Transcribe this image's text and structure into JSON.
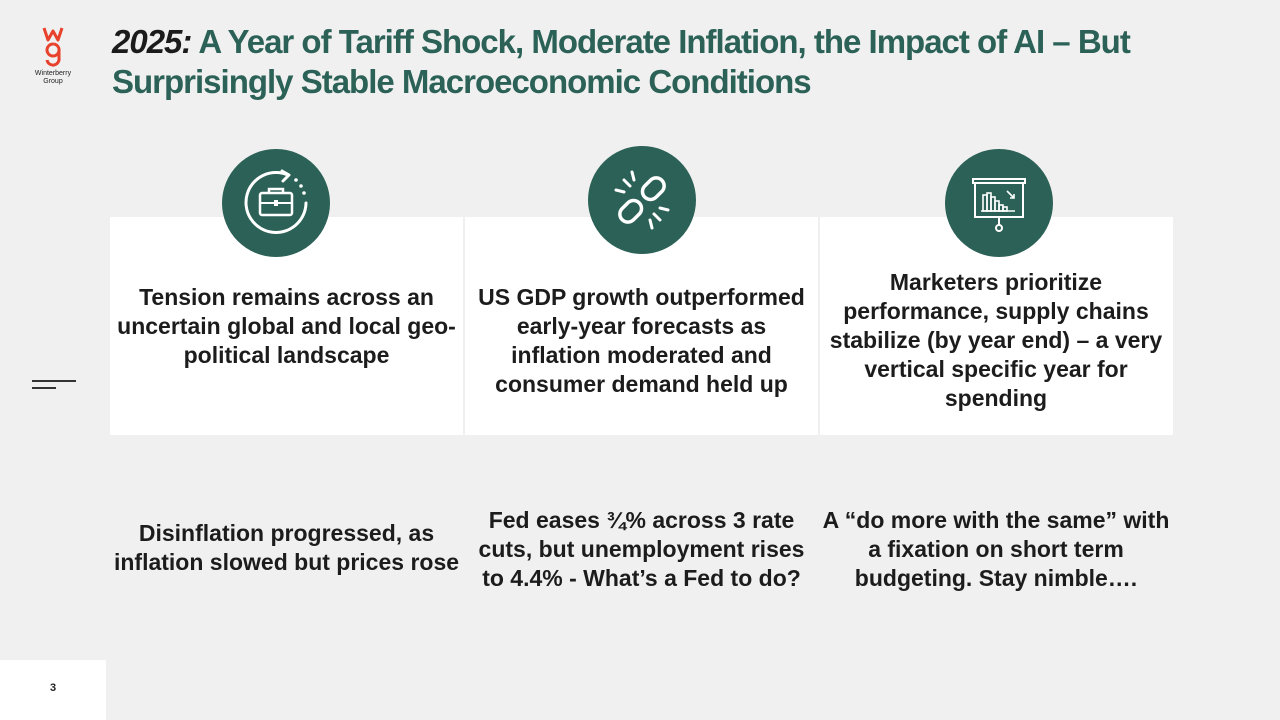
{
  "logo": {
    "text": "Winterberry Group",
    "accent": "#e8412c"
  },
  "title": {
    "year": "2025:",
    "rest": " A Year of Tariff Shock, Moderate Inflation, the Impact of AI – But Surprisingly Stable Macroeconomic Conditions"
  },
  "colors": {
    "primary": "#2b6156",
    "text": "#1c1c1c",
    "background": "#f0f0f0",
    "card": "#ffffff"
  },
  "columns": [
    {
      "icon": "briefcase-cycle-icon",
      "top_text": "Tension remains across an uncertain global and local geo-political landscape",
      "bottom_text": "Disinflation progressed, as inflation slowed but prices rose"
    },
    {
      "icon": "broken-link-icon",
      "top_text": "US GDP growth outperformed early-year forecasts as inflation moderated and consumer demand held up",
      "bottom_text_main": "Fed eases ¾% across 3 rate cuts, but unemployment rises to 4.4% - What",
      "bottom_text_tail": "’s a Fed to do?"
    },
    {
      "icon": "presentation-chart-icon",
      "top_text": "Marketers prioritize performance, supply chains stabilize (by year end) – a very vertical specific year for spending",
      "bottom_text": "A “do more with the same” with a fixation on short term budgeting.   Stay nimble…."
    }
  ],
  "page_number": "3"
}
